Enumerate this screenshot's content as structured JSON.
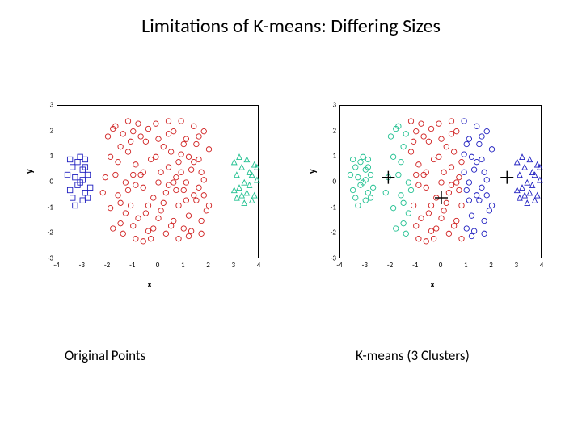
{
  "title": "Limitations of K-means: Differing Sizes",
  "caption_left": "Original Points",
  "caption_right": "K-means (3 Clusters)",
  "axis": {
    "xlabel": "x",
    "ylabel": "y",
    "xlim": [
      -4,
      4
    ],
    "ylim": [
      -3,
      3
    ],
    "xticks": [
      -4,
      -3,
      -2,
      -1,
      0,
      1,
      2,
      3,
      4
    ],
    "yticks": [
      -3,
      -2,
      -1,
      0,
      1,
      2,
      3
    ],
    "label_fontsize": 12,
    "tick_fontsize": 9
  },
  "colors": {
    "blue": "#2020c0",
    "red": "#d02020",
    "green": "#20c090",
    "black": "#000000",
    "bg": "#ffffff"
  },
  "marker_size": 3.2,
  "marker_stroke": 0.9,
  "clusters_original": [
    {
      "color": "blue",
      "marker": "square",
      "points": [
        [
          -3.4,
          0.6
        ],
        [
          -3.3,
          0.2
        ],
        [
          -3.2,
          -0.1
        ],
        [
          -3.2,
          0.8
        ],
        [
          -3.0,
          0.5
        ],
        [
          -3.5,
          -0.3
        ],
        [
          -3.1,
          0.0
        ],
        [
          -2.9,
          0.9
        ],
        [
          -2.9,
          -0.4
        ],
        [
          -3.4,
          -0.6
        ],
        [
          -3.6,
          0.3
        ],
        [
          -3.0,
          -0.7
        ],
        [
          -2.8,
          0.3
        ],
        [
          -2.7,
          -0.2
        ],
        [
          -3.3,
          -0.9
        ],
        [
          -3.1,
          1.0
        ],
        [
          -2.9,
          0.6
        ],
        [
          -3.5,
          0.9
        ],
        [
          -2.8,
          -0.6
        ],
        [
          -3.0,
          0.1
        ]
      ]
    },
    {
      "color": "red",
      "marker": "circle",
      "points": [
        [
          -2.0,
          1.8
        ],
        [
          -1.7,
          2.2
        ],
        [
          -1.5,
          -1.6
        ],
        [
          -1.3,
          0.0
        ],
        [
          -1.2,
          1.2
        ],
        [
          -1.1,
          -0.9
        ],
        [
          -1.0,
          2.0
        ],
        [
          -0.9,
          0.7
        ],
        [
          -0.8,
          -1.4
        ],
        [
          -0.7,
          0.3
        ],
        [
          -0.6,
          -0.2
        ],
        [
          -0.5,
          1.6
        ],
        [
          -0.4,
          -1.9
        ],
        [
          -0.3,
          0.9
        ],
        [
          -0.2,
          -0.6
        ],
        [
          -0.1,
          2.3
        ],
        [
          0.0,
          0.0
        ],
        [
          0.1,
          -1.1
        ],
        [
          0.2,
          1.4
        ],
        [
          0.3,
          -0.4
        ],
        [
          0.4,
          0.6
        ],
        [
          0.5,
          -1.7
        ],
        [
          0.6,
          2.0
        ],
        [
          0.7,
          0.2
        ],
        [
          0.8,
          -0.9
        ],
        [
          0.9,
          1.1
        ],
        [
          1.0,
          -0.3
        ],
        [
          1.1,
          1.7
        ],
        [
          1.2,
          -1.3
        ],
        [
          1.3,
          0.5
        ],
        [
          1.4,
          2.2
        ],
        [
          1.5,
          -0.7
        ],
        [
          1.6,
          0.9
        ],
        [
          1.7,
          -1.5
        ],
        [
          1.8,
          0.1
        ],
        [
          2.0,
          1.3
        ],
        [
          -1.9,
          -1.0
        ],
        [
          -1.6,
          0.8
        ],
        [
          -1.4,
          -2.0
        ],
        [
          -1.2,
          2.4
        ],
        [
          -0.9,
          -0.1
        ],
        [
          -0.7,
          1.8
        ],
        [
          -0.5,
          -1.2
        ],
        [
          -0.3,
          -2.2
        ],
        [
          -0.1,
          1.0
        ],
        [
          0.1,
          0.4
        ],
        [
          0.3,
          -2.0
        ],
        [
          0.5,
          1.2
        ],
        [
          0.7,
          -0.3
        ],
        [
          0.9,
          2.4
        ],
        [
          1.1,
          0.0
        ],
        [
          1.3,
          -1.9
        ],
        [
          1.5,
          1.5
        ],
        [
          1.7,
          0.4
        ],
        [
          1.9,
          -1.1
        ],
        [
          -2.1,
          0.2
        ],
        [
          -1.8,
          -1.8
        ],
        [
          -1.5,
          1.4
        ],
        [
          -1.0,
          -1.7
        ],
        [
          -0.4,
          2.1
        ],
        [
          0.0,
          -1.4
        ],
        [
          0.4,
          1.9
        ],
        [
          0.8,
          0.8
        ],
        [
          1.2,
          -2.1
        ],
        [
          1.6,
          -0.2
        ],
        [
          2.0,
          -0.9
        ],
        [
          -1.9,
          1.0
        ],
        [
          -1.3,
          -1.2
        ],
        [
          -0.6,
          0.4
        ],
        [
          0.2,
          -0.8
        ],
        [
          0.6,
          -1.5
        ],
        [
          1.0,
          1.5
        ],
        [
          1.4,
          -0.5
        ],
        [
          1.8,
          2.0
        ],
        [
          -2.2,
          -0.4
        ],
        [
          -1.6,
          -0.5
        ],
        [
          -1.0,
          0.3
        ],
        [
          -0.2,
          -1.8
        ],
        [
          0.4,
          -0.1
        ],
        [
          1.0,
          -1.8
        ],
        [
          1.6,
          1.8
        ],
        [
          -0.8,
          2.3
        ],
        [
          0.8,
          -2.2
        ],
        [
          -1.4,
          1.9
        ],
        [
          1.4,
          0.8
        ],
        [
          -0.6,
          -2.3
        ],
        [
          0.6,
          0.0
        ],
        [
          -1.1,
          1.6
        ],
        [
          1.1,
          -0.7
        ],
        [
          -1.7,
          0.3
        ],
        [
          1.7,
          -2.0
        ],
        [
          0.0,
          1.7
        ],
        [
          -1.2,
          -0.3
        ],
        [
          1.2,
          1.0
        ],
        [
          -0.4,
          -0.9
        ],
        [
          0.4,
          2.4
        ],
        [
          -1.8,
          2.1
        ],
        [
          1.8,
          -0.5
        ],
        [
          -0.9,
          -2.2
        ],
        [
          0.9,
          0.4
        ],
        [
          -1.5,
          -0.8
        ]
      ]
    },
    {
      "color": "green",
      "marker": "triangle",
      "points": [
        [
          3.0,
          0.8
        ],
        [
          3.1,
          0.3
        ],
        [
          3.2,
          -0.2
        ],
        [
          3.3,
          0.6
        ],
        [
          3.4,
          0.0
        ],
        [
          3.5,
          0.9
        ],
        [
          3.5,
          -0.4
        ],
        [
          3.6,
          0.4
        ],
        [
          3.7,
          -0.7
        ],
        [
          3.8,
          0.7
        ],
        [
          3.9,
          0.1
        ],
        [
          3.1,
          -0.6
        ],
        [
          3.2,
          1.0
        ],
        [
          3.4,
          -0.8
        ],
        [
          3.6,
          -0.1
        ],
        [
          3.7,
          0.3
        ],
        [
          3.8,
          -0.5
        ],
        [
          3.9,
          0.6
        ],
        [
          3.0,
          -0.3
        ],
        [
          3.3,
          -0.5
        ]
      ]
    }
  ],
  "clusters_kmeans": [
    {
      "color": "green",
      "marker": "circle",
      "points": [
        [
          -3.4,
          0.6
        ],
        [
          -3.3,
          0.2
        ],
        [
          -3.2,
          -0.1
        ],
        [
          -3.2,
          0.8
        ],
        [
          -3.0,
          0.5
        ],
        [
          -3.5,
          -0.3
        ],
        [
          -3.1,
          0.0
        ],
        [
          -2.9,
          0.9
        ],
        [
          -2.9,
          -0.4
        ],
        [
          -3.4,
          -0.6
        ],
        [
          -3.6,
          0.3
        ],
        [
          -3.0,
          -0.7
        ],
        [
          -2.8,
          0.3
        ],
        [
          -2.7,
          -0.2
        ],
        [
          -3.3,
          -0.9
        ],
        [
          -3.1,
          1.0
        ],
        [
          -2.9,
          0.6
        ],
        [
          -3.5,
          0.9
        ],
        [
          -2.8,
          -0.6
        ],
        [
          -3.0,
          0.1
        ],
        [
          -2.0,
          1.8
        ],
        [
          -1.7,
          2.2
        ],
        [
          -1.9,
          -1.0
        ],
        [
          -1.8,
          -1.8
        ],
        [
          -2.1,
          0.2
        ],
        [
          -2.2,
          -0.4
        ],
        [
          -1.9,
          1.0
        ],
        [
          -1.6,
          0.8
        ],
        [
          -1.6,
          -0.5
        ],
        [
          -1.7,
          0.3
        ],
        [
          -1.8,
          2.1
        ],
        [
          -1.5,
          1.4
        ],
        [
          -1.5,
          -0.8
        ],
        [
          -1.5,
          -1.6
        ],
        [
          -1.4,
          -2.0
        ],
        [
          -1.4,
          1.9
        ],
        [
          -1.3,
          -1.2
        ],
        [
          -1.3,
          0.0
        ],
        [
          -1.2,
          -0.3
        ]
      ]
    },
    {
      "color": "red",
      "marker": "circle",
      "points": [
        [
          -1.2,
          1.2
        ],
        [
          -1.1,
          -0.9
        ],
        [
          -1.0,
          2.0
        ],
        [
          -0.9,
          0.7
        ],
        [
          -0.8,
          -1.4
        ],
        [
          -0.7,
          0.3
        ],
        [
          -0.6,
          -0.2
        ],
        [
          -0.5,
          1.6
        ],
        [
          -0.4,
          -1.9
        ],
        [
          -0.3,
          0.9
        ],
        [
          -0.2,
          -0.6
        ],
        [
          -0.1,
          2.3
        ],
        [
          0.0,
          0.0
        ],
        [
          0.1,
          -1.1
        ],
        [
          0.2,
          1.4
        ],
        [
          0.3,
          -0.4
        ],
        [
          0.4,
          0.6
        ],
        [
          0.5,
          -1.7
        ],
        [
          0.6,
          2.0
        ],
        [
          0.7,
          0.2
        ],
        [
          0.8,
          -0.9
        ],
        [
          -1.2,
          2.4
        ],
        [
          -0.9,
          -0.1
        ],
        [
          -0.7,
          1.8
        ],
        [
          -0.5,
          -1.2
        ],
        [
          -0.3,
          -2.2
        ],
        [
          -0.1,
          1.0
        ],
        [
          0.1,
          0.4
        ],
        [
          0.3,
          -2.0
        ],
        [
          0.5,
          1.2
        ],
        [
          0.7,
          -0.3
        ],
        [
          -1.0,
          -1.7
        ],
        [
          -0.4,
          2.1
        ],
        [
          0.0,
          -1.4
        ],
        [
          0.4,
          1.9
        ],
        [
          0.8,
          0.8
        ],
        [
          -1.0,
          0.3
        ],
        [
          -0.2,
          -1.8
        ],
        [
          0.4,
          -0.1
        ],
        [
          -0.6,
          0.4
        ],
        [
          0.2,
          -0.8
        ],
        [
          0.6,
          -1.5
        ],
        [
          -0.8,
          2.3
        ],
        [
          0.8,
          -2.2
        ],
        [
          -0.6,
          -2.3
        ],
        [
          0.6,
          0.0
        ],
        [
          -1.1,
          1.6
        ],
        [
          0.0,
          1.7
        ],
        [
          -0.4,
          -0.9
        ],
        [
          0.4,
          2.4
        ],
        [
          -0.9,
          -2.2
        ]
      ]
    },
    {
      "color": "blue",
      "marker": "circle",
      "points": [
        [
          0.9,
          1.1
        ],
        [
          1.0,
          -0.3
        ],
        [
          1.1,
          1.7
        ],
        [
          1.2,
          -1.3
        ],
        [
          1.3,
          0.5
        ],
        [
          1.4,
          2.2
        ],
        [
          1.5,
          -0.7
        ],
        [
          1.6,
          0.9
        ],
        [
          1.7,
          -1.5
        ],
        [
          1.8,
          0.1
        ],
        [
          2.0,
          1.3
        ],
        [
          0.9,
          2.4
        ],
        [
          1.1,
          0.0
        ],
        [
          1.3,
          -1.9
        ],
        [
          1.5,
          1.5
        ],
        [
          1.7,
          0.4
        ],
        [
          1.9,
          -1.1
        ],
        [
          1.2,
          -2.1
        ],
        [
          1.6,
          -0.2
        ],
        [
          2.0,
          -0.9
        ],
        [
          1.0,
          1.5
        ],
        [
          1.4,
          -0.5
        ],
        [
          1.8,
          2.0
        ],
        [
          1.0,
          -1.8
        ],
        [
          1.6,
          1.8
        ],
        [
          1.4,
          0.8
        ],
        [
          1.1,
          -0.7
        ],
        [
          1.7,
          -2.0
        ],
        [
          1.2,
          1.0
        ],
        [
          1.8,
          -0.5
        ],
        [
          0.9,
          0.4
        ]
      ]
    },
    {
      "color": "blue",
      "marker": "triangle",
      "points": [
        [
          3.0,
          0.8
        ],
        [
          3.1,
          0.3
        ],
        [
          3.2,
          -0.2
        ],
        [
          3.3,
          0.6
        ],
        [
          3.4,
          0.0
        ],
        [
          3.5,
          0.9
        ],
        [
          3.5,
          -0.4
        ],
        [
          3.6,
          0.4
        ],
        [
          3.7,
          -0.7
        ],
        [
          3.8,
          0.7
        ],
        [
          3.9,
          0.1
        ],
        [
          3.1,
          -0.6
        ],
        [
          3.2,
          1.0
        ],
        [
          3.4,
          -0.8
        ],
        [
          3.6,
          -0.1
        ],
        [
          3.7,
          0.3
        ],
        [
          3.8,
          -0.5
        ],
        [
          3.9,
          0.6
        ],
        [
          3.0,
          -0.3
        ],
        [
          3.3,
          -0.5
        ]
      ]
    }
  ],
  "centroids": [
    [
      -2.1,
      0.2
    ],
    [
      0.0,
      -0.6
    ],
    [
      2.6,
      0.2
    ]
  ]
}
